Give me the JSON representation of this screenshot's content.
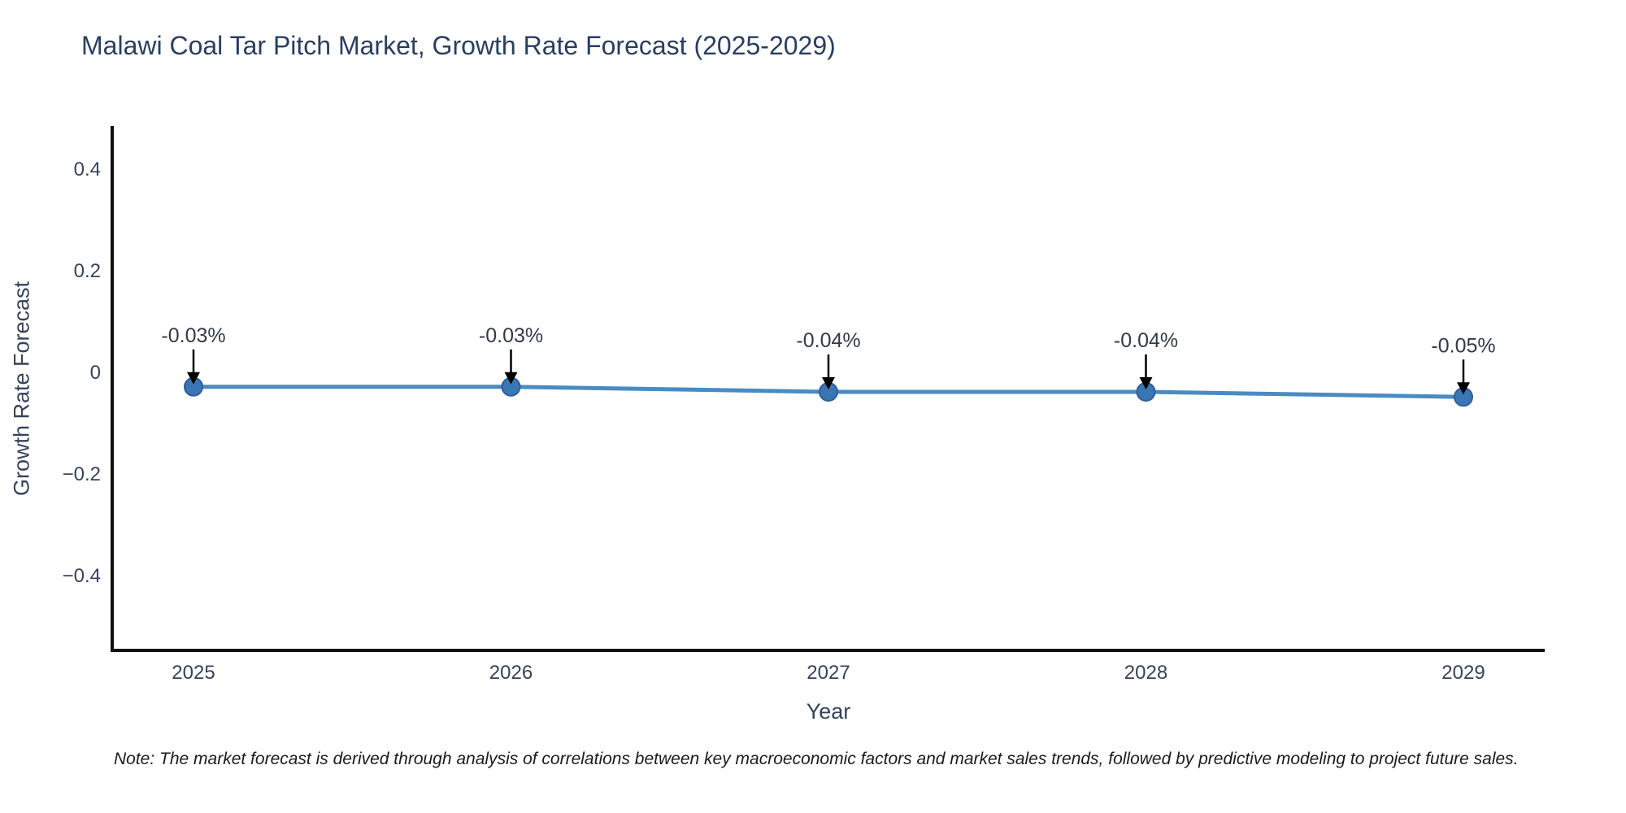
{
  "page": {
    "background": "#ffffff"
  },
  "chart_data": {
    "type": "line",
    "title": "Malawi Coal Tar Pitch Market, Growth Rate Forecast (2025-2029)",
    "xlabel": "Year",
    "ylabel": "Growth Rate Forecast",
    "x": [
      2025,
      2026,
      2027,
      2028,
      2029
    ],
    "series": [
      {
        "name": "Growth Rate Forecast",
        "values": [
          -0.03,
          -0.03,
          -0.04,
          -0.04,
          -0.05
        ]
      }
    ],
    "point_labels": [
      "-0.03%",
      "-0.03%",
      "-0.04%",
      "-0.04%",
      "-0.05%"
    ],
    "xtick_labels": [
      "2025",
      "2026",
      "2027",
      "2028",
      "2029"
    ],
    "yticks": [
      0.4,
      0.2,
      0,
      -0.2,
      -0.4
    ],
    "ytick_labels": [
      "0.4",
      "0.2",
      "0",
      "−0.2",
      "−0.4"
    ],
    "ylim": [
      -0.55,
      0.48
    ],
    "grid": false,
    "legend_position": "none",
    "annotation_style": "arrow-down",
    "colors": {
      "line": "#4a8bc2",
      "marker_fill": "#3a76b4",
      "marker_edge": "#2e5f96",
      "arrow": "#000000",
      "axis_line": "#111111",
      "title_text": "#2a3f5f",
      "tick_text": "#36435a",
      "annotation_text": "#333a46",
      "note_text": "#1b1b1b"
    }
  },
  "note": "Note: The market forecast is derived through analysis of correlations between key macroeconomic factors and market sales trends, followed by predictive modeling to project future sales."
}
